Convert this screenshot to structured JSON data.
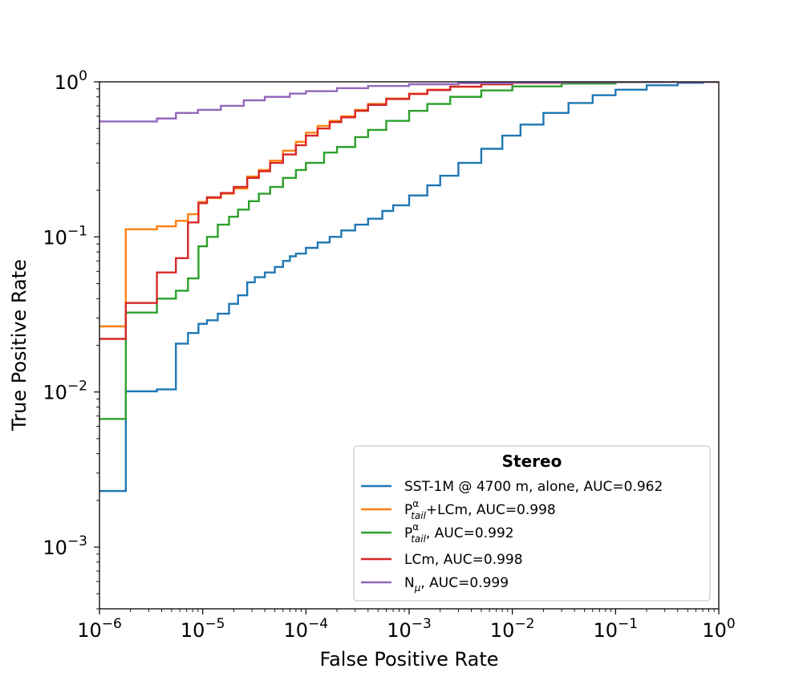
{
  "chart_data": {
    "type": "line",
    "title": "",
    "xlabel": "False Positive Rate",
    "ylabel": "True Positive Rate",
    "xscale": "log",
    "yscale": "log",
    "xlim": [
      1e-06,
      1
    ],
    "ylim": [
      0.0004,
      1
    ],
    "x_ticks": [
      {
        "base": "10",
        "exp": "−6",
        "value": 1e-06
      },
      {
        "base": "10",
        "exp": "−5",
        "value": 1e-05
      },
      {
        "base": "10",
        "exp": "−4",
        "value": 0.0001
      },
      {
        "base": "10",
        "exp": "−3",
        "value": 0.001
      },
      {
        "base": "10",
        "exp": "−2",
        "value": 0.01
      },
      {
        "base": "10",
        "exp": "−1",
        "value": 0.1
      },
      {
        "base": "10",
        "exp": "0",
        "value": 1
      }
    ],
    "y_ticks": [
      {
        "base": "10",
        "exp": "−3",
        "value": 0.001
      },
      {
        "base": "10",
        "exp": "−2",
        "value": 0.01
      },
      {
        "base": "10",
        "exp": "−1",
        "value": 0.1
      },
      {
        "base": "10",
        "exp": "0",
        "value": 1
      }
    ],
    "legend": {
      "title": "Stereo",
      "location": "lower-right",
      "entries": [
        {
          "id": "sst1m",
          "label": "SST-1M @ 4700 m, alone, AUC=0.962"
        },
        {
          "id": "ptail-lcm",
          "label_main": "P",
          "label_sup": "α",
          "label_sub": "tail",
          "label_rest": "+LCm, AUC=0.998"
        },
        {
          "id": "ptail",
          "label_main": "P",
          "label_sup": "α",
          "label_sub": "tail",
          "label_rest": ", AUC=0.992"
        },
        {
          "id": "lcm",
          "label": "LCm, AUC=0.998"
        },
        {
          "id": "nmu",
          "label_main": "N",
          "label_sub": "μ",
          "label_rest": ", AUC=0.999"
        }
      ]
    },
    "series": [
      {
        "name": "SST-1M @ 4700 m, alone, AUC=0.962",
        "color": "#1f77b4",
        "step": true,
        "x": [
          1e-06,
          1.8e-06,
          1.8e-06,
          3.6e-06,
          5.5e-06,
          5.5e-06,
          7.2e-06,
          9.1e-06,
          1.1e-05,
          1.4e-05,
          1.8e-05,
          2.2e-05,
          2.7e-05,
          3.2e-05,
          4e-05,
          5e-05,
          6e-05,
          7e-05,
          8e-05,
          0.0001,
          0.00013,
          0.00017,
          0.00022,
          0.0003,
          0.0004,
          0.00055,
          0.0007,
          0.001,
          0.0015,
          0.002,
          0.003,
          0.005,
          0.008,
          0.012,
          0.02,
          0.035,
          0.06,
          0.1,
          0.2,
          0.4,
          0.7,
          1
        ],
        "y": [
          0.0023,
          0.0023,
          0.0101,
          0.0104,
          0.0104,
          0.0205,
          0.024,
          0.0275,
          0.029,
          0.032,
          0.037,
          0.042,
          0.051,
          0.055,
          0.059,
          0.064,
          0.07,
          0.075,
          0.078,
          0.085,
          0.092,
          0.1,
          0.11,
          0.12,
          0.131,
          0.147,
          0.16,
          0.185,
          0.215,
          0.248,
          0.3,
          0.37,
          0.45,
          0.53,
          0.63,
          0.73,
          0.82,
          0.89,
          0.95,
          0.985,
          0.998,
          1.0
        ]
      },
      {
        "name": "P_tail^α+LCm, AUC=0.998",
        "color": "#ff7f0e",
        "step": true,
        "x": [
          1e-06,
          1.8e-06,
          1.8e-06,
          3.6e-06,
          5.5e-06,
          7.2e-06,
          9.1e-06,
          1.1e-05,
          1.5e-05,
          2e-05,
          2.7e-05,
          3.5e-05,
          4.5e-05,
          6e-05,
          8e-05,
          0.0001,
          0.00013,
          0.00017,
          0.00022,
          0.0003,
          0.0004,
          0.0006,
          0.001,
          0.0015,
          0.0025,
          0.005,
          0.01,
          0.03,
          0.1,
          0.3,
          1
        ],
        "y": [
          0.0265,
          0.0265,
          0.112,
          0.117,
          0.127,
          0.14,
          0.168,
          0.178,
          0.19,
          0.205,
          0.245,
          0.27,
          0.31,
          0.36,
          0.41,
          0.47,
          0.52,
          0.56,
          0.6,
          0.66,
          0.72,
          0.78,
          0.84,
          0.89,
          0.93,
          0.965,
          0.985,
          0.995,
          0.999,
          1.0,
          1.0
        ]
      },
      {
        "name": "P_tail^α, AUC=0.992",
        "color": "#2ca02c",
        "step": true,
        "x": [
          1e-06,
          1.8e-06,
          1.8e-06,
          3.6e-06,
          5.5e-06,
          7.2e-06,
          9.1e-06,
          1.1e-05,
          1.4e-05,
          1.8e-05,
          2.2e-05,
          2.8e-05,
          3.5e-05,
          4.5e-05,
          6e-05,
          8e-05,
          0.0001,
          0.00015,
          0.0002,
          0.0003,
          0.0004,
          0.0006,
          0.001,
          0.0015,
          0.0025,
          0.005,
          0.01,
          0.03,
          0.1,
          0.3,
          1
        ],
        "y": [
          0.0067,
          0.0067,
          0.0325,
          0.04,
          0.045,
          0.054,
          0.087,
          0.1,
          0.12,
          0.135,
          0.15,
          0.17,
          0.19,
          0.21,
          0.24,
          0.27,
          0.3,
          0.35,
          0.38,
          0.44,
          0.49,
          0.56,
          0.65,
          0.72,
          0.8,
          0.88,
          0.935,
          0.975,
          0.995,
          0.999,
          1.0
        ]
      },
      {
        "name": "LCm, AUC=0.998",
        "color": "#d62728",
        "step": true,
        "x": [
          1e-06,
          1.8e-06,
          1.8e-06,
          3.6e-06,
          5.5e-06,
          7.2e-06,
          9.1e-06,
          1.1e-05,
          1.5e-05,
          2e-05,
          2.7e-05,
          3.5e-05,
          4.5e-05,
          6e-05,
          8e-05,
          0.0001,
          0.00013,
          0.00017,
          0.00022,
          0.0003,
          0.0004,
          0.0006,
          0.001,
          0.0015,
          0.0025,
          0.005,
          0.01,
          0.03,
          0.1,
          0.3,
          1
        ],
        "y": [
          0.022,
          0.022,
          0.0375,
          0.059,
          0.073,
          0.124,
          0.165,
          0.18,
          0.192,
          0.21,
          0.24,
          0.265,
          0.3,
          0.34,
          0.39,
          0.45,
          0.5,
          0.55,
          0.59,
          0.65,
          0.71,
          0.775,
          0.835,
          0.885,
          0.93,
          0.965,
          0.985,
          0.995,
          0.999,
          1.0,
          1.0
        ]
      },
      {
        "name": "N_μ, AUC=0.999",
        "color": "#9467bd",
        "step": true,
        "x": [
          1e-06,
          3.6e-06,
          5.5e-06,
          9e-06,
          1.5e-05,
          2.5e-05,
          4e-05,
          7e-05,
          0.0001,
          0.0002,
          0.0004,
          0.001,
          0.003,
          0.01,
          0.03,
          0.1,
          1
        ],
        "y": [
          0.555,
          0.58,
          0.63,
          0.66,
          0.7,
          0.76,
          0.8,
          0.84,
          0.87,
          0.91,
          0.94,
          0.965,
          0.98,
          0.99,
          0.995,
          0.999,
          1.0
        ]
      }
    ]
  }
}
